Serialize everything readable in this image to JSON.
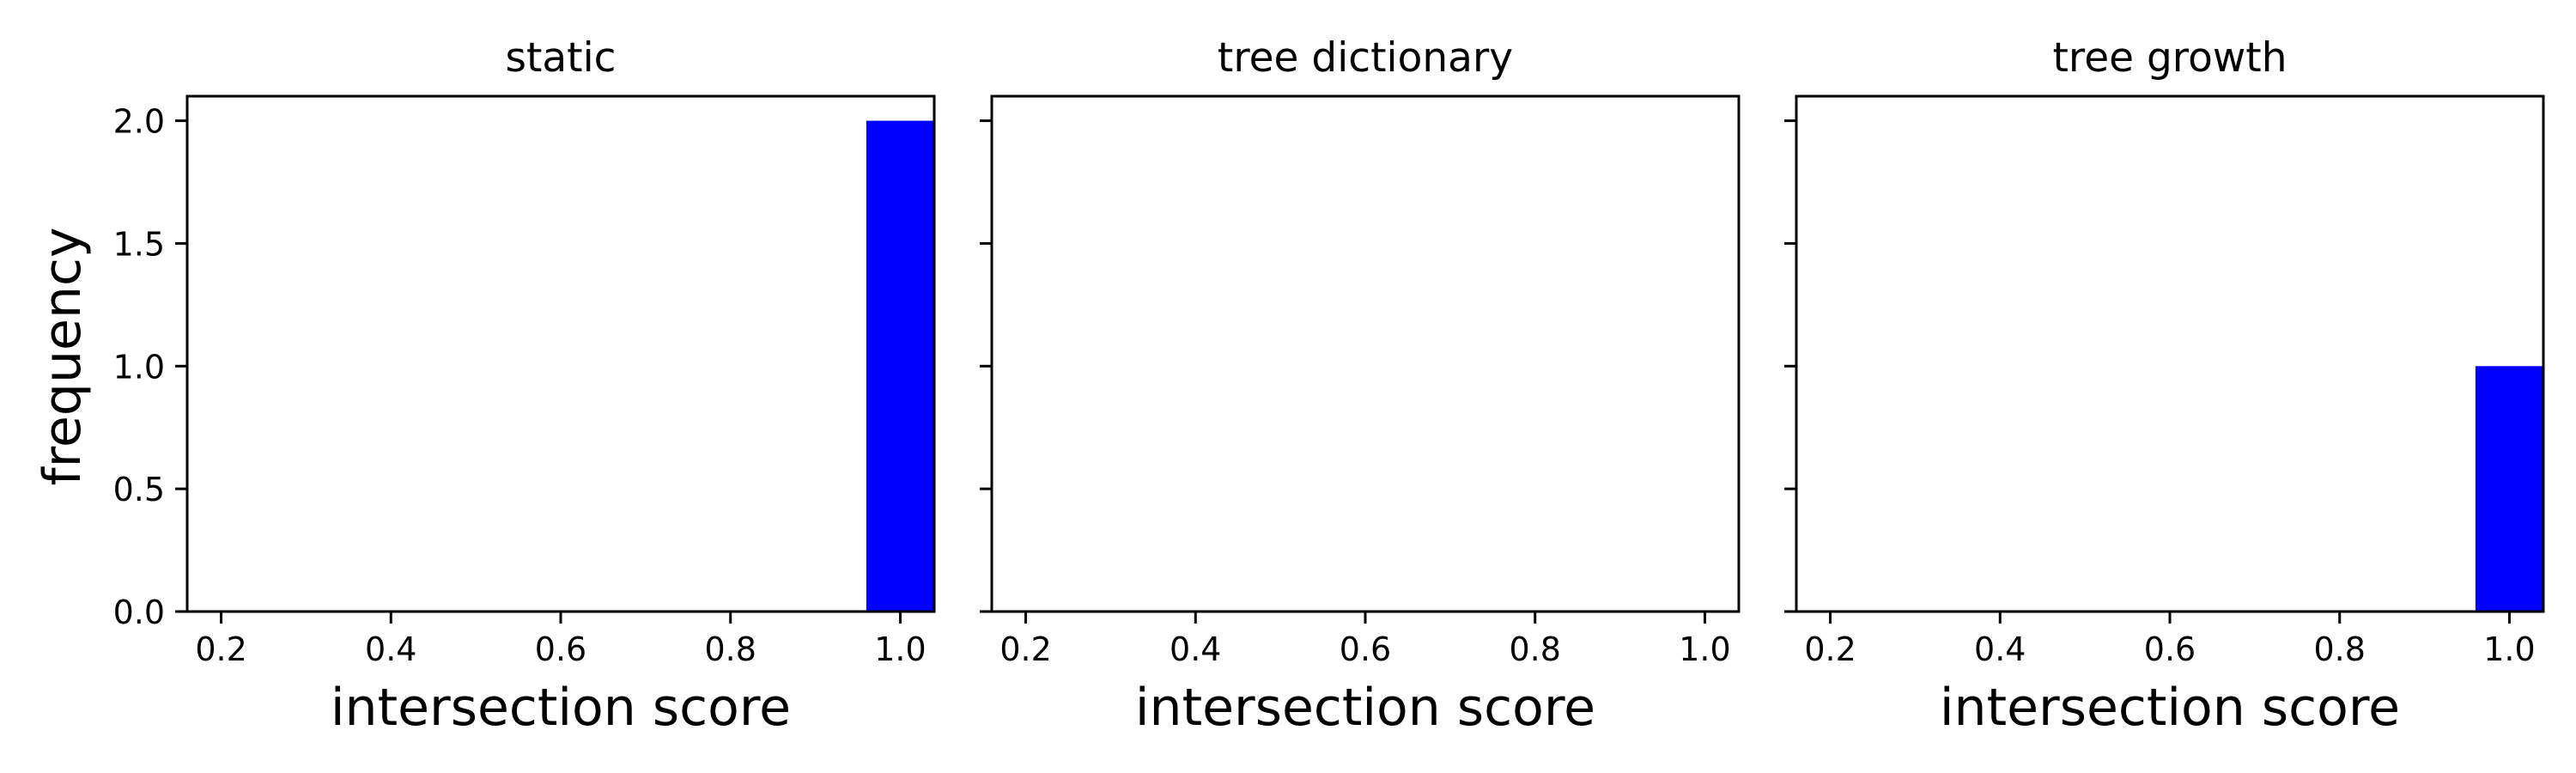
{
  "chart_data": {
    "type": "bar",
    "ylabel": "frequency",
    "ylim": [
      0,
      2.1
    ],
    "yticks": [
      "0.0",
      "0.5",
      "1.0",
      "1.5",
      "2.0"
    ],
    "ytick_values": [
      0.0,
      0.5,
      1.0,
      1.5,
      2.0
    ],
    "xlim": [
      0.16,
      1.04
    ],
    "xticks": [
      "0.2",
      "0.4",
      "0.6",
      "0.8",
      "1.0"
    ],
    "xtick_values": [
      0.2,
      0.4,
      0.6,
      0.8,
      1.0
    ],
    "bar_color": "#0000ff",
    "panels": [
      {
        "title": "static",
        "xlabel": "intersection score",
        "bins": [
          {
            "x_start": 0.96,
            "x_end": 1.04,
            "count": 2
          }
        ]
      },
      {
        "title": "tree dictionary",
        "xlabel": "intersection score",
        "bins": []
      },
      {
        "title": "tree growth",
        "xlabel": "intersection score",
        "bins": [
          {
            "x_start": 0.96,
            "x_end": 1.04,
            "count": 1
          }
        ]
      }
    ]
  }
}
